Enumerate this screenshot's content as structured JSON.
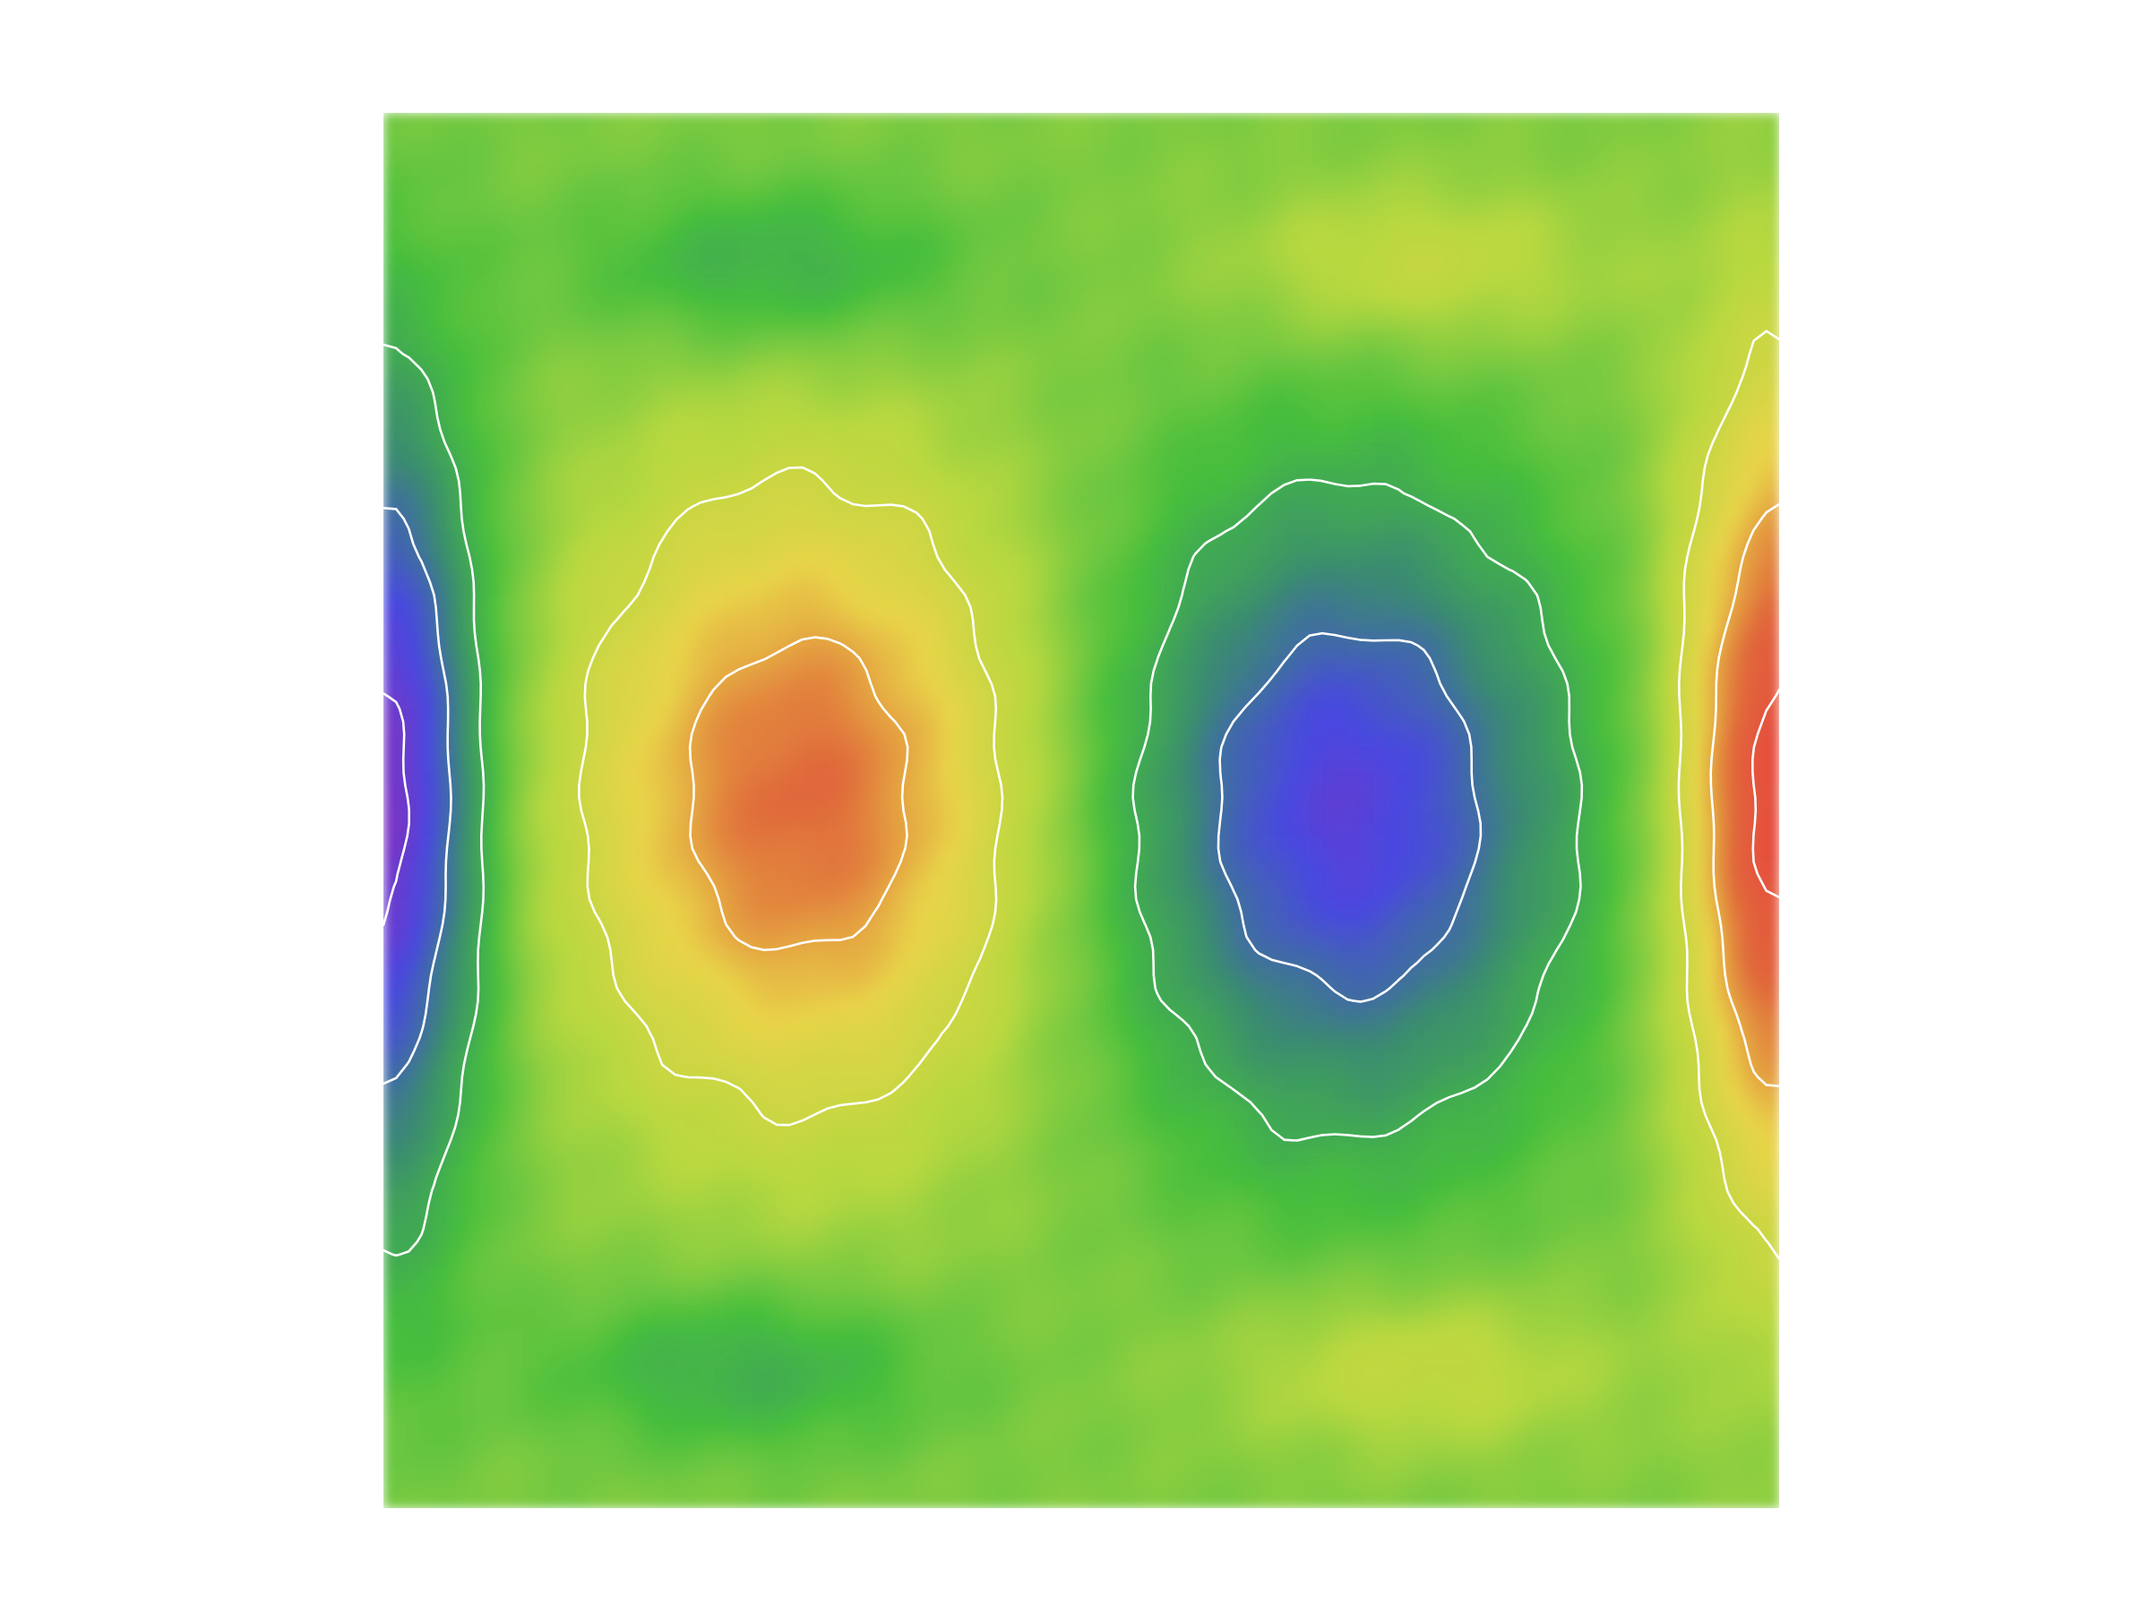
{
  "chart_data": {
    "type": "heatmap",
    "subtype": "filled-contour-with-contour-lines",
    "title": "",
    "xlabel": "",
    "ylabel": "",
    "axes_visible": false,
    "grid": false,
    "legend": "none",
    "colormap": [
      "#8e2cb8",
      "#4848e0",
      "#3a8a72",
      "#46be3e",
      "#b8d840",
      "#e8d448",
      "#e06a3a",
      "#e84040"
    ],
    "contour_line_color": "#ffffff",
    "background_value": 0.0,
    "value_range": [
      -1.0,
      1.0
    ],
    "features": [
      {
        "kind": "peak",
        "label": "left-center",
        "center": [
          0.3,
          0.49
        ],
        "spread": [
          0.16,
          0.22
        ],
        "value": 0.72
      },
      {
        "kind": "trough",
        "label": "right-center",
        "center": [
          0.69,
          0.5
        ],
        "spread": [
          0.16,
          0.22
        ],
        "value": -0.78
      },
      {
        "kind": "trough",
        "label": "left-edge",
        "center": [
          0.0,
          0.49
        ],
        "spread": [
          0.07,
          0.28
        ],
        "value": -0.95
      },
      {
        "kind": "peak",
        "label": "right-edge",
        "center": [
          1.0,
          0.49
        ],
        "spread": [
          0.07,
          0.28
        ],
        "value": 0.95
      },
      {
        "kind": "trough",
        "label": "top-left",
        "center": [
          0.28,
          0.11
        ],
        "spread": [
          0.14,
          0.06
        ],
        "value": -0.25
      },
      {
        "kind": "peak",
        "label": "top-right",
        "center": [
          0.74,
          0.11
        ],
        "spread": [
          0.14,
          0.06
        ],
        "value": 0.22
      },
      {
        "kind": "trough",
        "label": "bottom-left",
        "center": [
          0.26,
          0.9
        ],
        "spread": [
          0.14,
          0.06
        ],
        "value": -0.25
      },
      {
        "kind": "peak",
        "label": "bottom-right",
        "center": [
          0.74,
          0.9
        ],
        "spread": [
          0.14,
          0.06
        ],
        "value": 0.22
      }
    ],
    "contour_levels": [
      -0.85,
      -0.55,
      -0.25,
      0.25,
      0.55,
      0.85
    ]
  }
}
